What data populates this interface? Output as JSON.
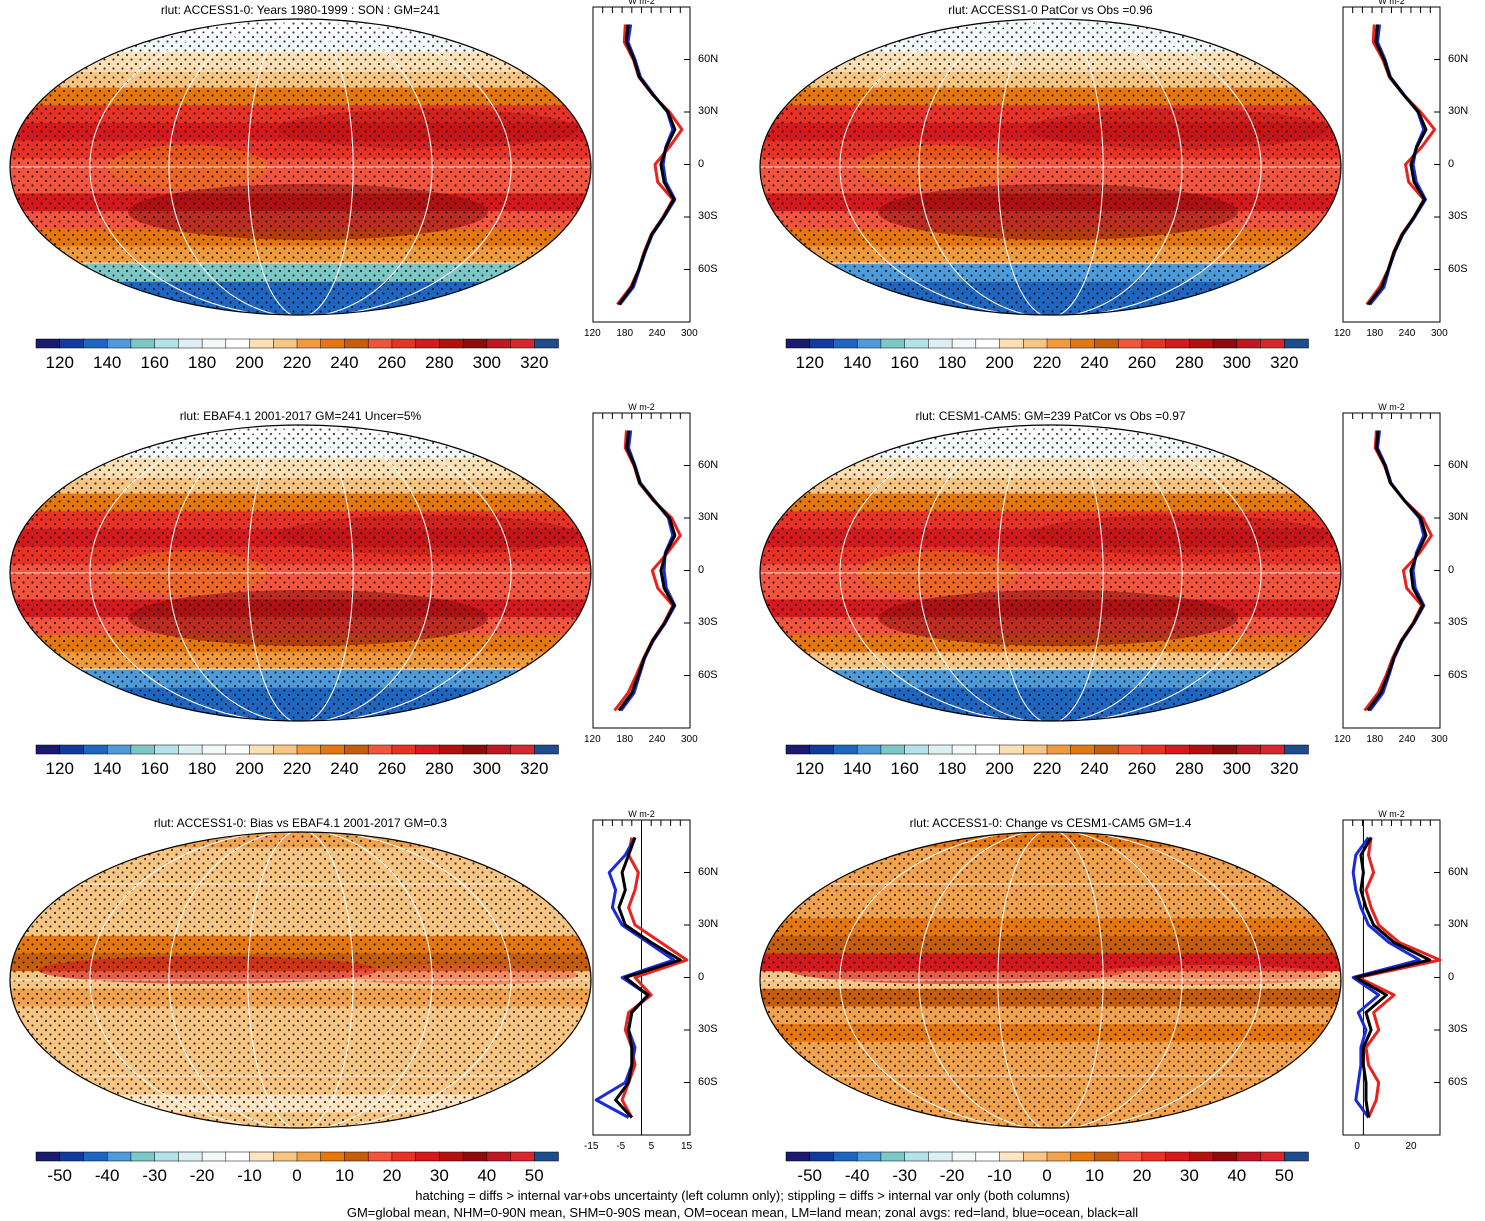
{
  "units": "W m-2",
  "zonal_lat_labels": [
    "60N",
    "30N",
    "0",
    "30S",
    "60S"
  ],
  "colors": {
    "land": "#e8231f",
    "ocean": "#1a2bd8",
    "all": "#000000"
  },
  "absolute_palette": [
    "#1a1a6e",
    "#123a9a",
    "#1f66c0",
    "#4f9bd9",
    "#7ec7c7",
    "#b3e3ea",
    "#dcf0f4",
    "#f4f8f9",
    "#ffffff",
    "#fbe0b5",
    "#f7c583",
    "#f09a3e",
    "#e57711",
    "#c55d0f",
    "#f2543d",
    "#e93226",
    "#d5191c",
    "#b5100f",
    "#8f0b0b",
    "#c01722",
    "#d8262e",
    "#1f4d8c"
  ],
  "diff_palette": [
    "#1a1a6e",
    "#123a9a",
    "#1f66c0",
    "#4f9bd9",
    "#7ec7c7",
    "#b3e3ea",
    "#dcf0f4",
    "#f4f8f9",
    "#ffffff",
    "#fde4c2",
    "#f7c583",
    "#f0a24f",
    "#e57711",
    "#c55d0f",
    "#f2543d",
    "#e93226",
    "#d5191c",
    "#b5100f",
    "#8f0b0b",
    "#c01722",
    "#d8262e",
    "#1f4d8c"
  ],
  "chart_data": [
    {
      "type": "heatmap",
      "title": "rlut: ACCESS1-0: Years 1980-1999 : SON : GM=241",
      "colorbar_ticks": [
        "120",
        "140",
        "160",
        "180",
        "200",
        "220",
        "240",
        "260",
        "280",
        "300",
        "320"
      ],
      "zonal": {
        "xlim": [
          120,
          300
        ],
        "xticks": [
          "120",
          "180",
          "240",
          "300"
        ],
        "zero_line": null,
        "lats": [
          80,
          70,
          60,
          50,
          40,
          30,
          20,
          10,
          0,
          -10,
          -20,
          -30,
          -40,
          -50,
          -60,
          -70,
          -80
        ],
        "land": [
          180,
          178,
          195,
          205,
          230,
          262,
          285,
          262,
          235,
          240,
          268,
          250,
          228,
          215,
          205,
          190,
          165
        ],
        "ocean": [
          190,
          185,
          198,
          208,
          232,
          258,
          268,
          255,
          250,
          255,
          272,
          252,
          230,
          217,
          206,
          195,
          170
        ],
        "all": [
          185,
          182,
          196,
          206,
          231,
          259,
          272,
          256,
          246,
          252,
          270,
          251,
          229,
          216,
          205,
          192,
          168
        ]
      }
    },
    {
      "type": "heatmap",
      "title": "rlut: ACCESS1-0 PatCor vs Obs =0.96",
      "colorbar_ticks": [
        "120",
        "140",
        "160",
        "180",
        "200",
        "220",
        "240",
        "260",
        "280",
        "300",
        "320"
      ],
      "zonal": {
        "xlim": [
          120,
          300
        ],
        "xticks": [
          "120",
          "180",
          "240",
          "300"
        ],
        "zero_line": null,
        "lats": [
          80,
          70,
          60,
          50,
          40,
          30,
          20,
          10,
          0,
          -10,
          -20,
          -30,
          -40,
          -50,
          -60,
          -70,
          -80
        ],
        "land": [
          178,
          176,
          194,
          206,
          232,
          264,
          290,
          266,
          236,
          242,
          270,
          252,
          229,
          214,
          204,
          188,
          164
        ],
        "ocean": [
          188,
          184,
          198,
          208,
          233,
          259,
          270,
          256,
          250,
          256,
          273,
          253,
          231,
          216,
          205,
          196,
          170
        ],
        "all": [
          184,
          181,
          196,
          207,
          232,
          260,
          274,
          257,
          246,
          252,
          271,
          252,
          230,
          215,
          204,
          192,
          167
        ]
      }
    },
    {
      "type": "heatmap",
      "title": "rlut: EBAF4.1 2001-2017 GM=241 Uncer=5%",
      "colorbar_ticks": [
        "120",
        "140",
        "160",
        "180",
        "200",
        "220",
        "240",
        "260",
        "280",
        "300",
        "320"
      ],
      "zonal": {
        "xlim": [
          120,
          300
        ],
        "xticks": [
          "120",
          "180",
          "240",
          "300"
        ],
        "zero_line": null,
        "lats": [
          80,
          70,
          60,
          50,
          40,
          30,
          20,
          10,
          0,
          -10,
          -20,
          -30,
          -40,
          -50,
          -60,
          -70,
          -80
        ],
        "land": [
          182,
          180,
          196,
          206,
          232,
          266,
          282,
          258,
          230,
          240,
          268,
          252,
          230,
          214,
          200,
          185,
          160
        ],
        "ocean": [
          190,
          186,
          198,
          208,
          234,
          260,
          268,
          254,
          252,
          256,
          272,
          254,
          232,
          216,
          206,
          196,
          172
        ],
        "all": [
          186,
          183,
          197,
          207,
          233,
          262,
          272,
          255,
          246,
          252,
          270,
          253,
          231,
          215,
          204,
          192,
          168
        ]
      }
    },
    {
      "type": "heatmap",
      "title": "rlut: CESM1-CAM5: GM=239 PatCor vs Obs =0.97",
      "colorbar_ticks": [
        "120",
        "140",
        "160",
        "180",
        "200",
        "220",
        "240",
        "260",
        "280",
        "300",
        "320"
      ],
      "zonal": {
        "xlim": [
          120,
          300
        ],
        "xticks": [
          "120",
          "180",
          "240",
          "300"
        ],
        "zero_line": null,
        "lats": [
          80,
          70,
          60,
          50,
          40,
          30,
          20,
          10,
          0,
          -10,
          -20,
          -30,
          -40,
          -50,
          -60,
          -70,
          -80
        ],
        "land": [
          182,
          180,
          197,
          208,
          234,
          268,
          284,
          262,
          232,
          238,
          266,
          250,
          228,
          212,
          200,
          185,
          160
        ],
        "ocean": [
          188,
          184,
          199,
          209,
          234,
          262,
          270,
          256,
          250,
          254,
          270,
          252,
          230,
          215,
          205,
          194,
          170
        ],
        "all": [
          185,
          182,
          198,
          208,
          234,
          264,
          274,
          258,
          246,
          250,
          268,
          251,
          229,
          214,
          203,
          190,
          166
        ]
      }
    },
    {
      "type": "heatmap",
      "title": "rlut: ACCESS1-0: Bias vs EBAF4.1 2001-2017  GM=0.3",
      "colorbar_ticks": [
        "-50",
        "-40",
        "-30",
        "-20",
        "-10",
        "0",
        "10",
        "20",
        "30",
        "40",
        "50"
      ],
      "zonal": {
        "xlim": [
          -15,
          15
        ],
        "xticks": [
          "-15",
          "-5",
          "5",
          "15"
        ],
        "zero_line": 0,
        "lats": [
          80,
          70,
          60,
          50,
          40,
          30,
          20,
          10,
          0,
          -10,
          -20,
          -30,
          -40,
          -50,
          -60,
          -70,
          -80
        ],
        "land": [
          -3,
          -4,
          -1,
          -2,
          -4,
          -2,
          6,
          14,
          -2,
          3,
          -4,
          -5,
          -3,
          -2,
          -4,
          -6,
          -3
        ],
        "ocean": [
          -2,
          -5,
          -10,
          -8,
          -9,
          -6,
          2,
          10,
          -6,
          2,
          -3,
          -4,
          -2,
          -3,
          -5,
          -14,
          -4
        ],
        "all": [
          -2,
          -4,
          -6,
          -5,
          -7,
          -5,
          3,
          12,
          -5,
          2,
          -3,
          -4,
          -3,
          -3,
          -4,
          -8,
          -3
        ]
      }
    },
    {
      "type": "heatmap",
      "title": "rlut: ACCESS1-0: Change vs CESM1-CAM5 GM=1.4",
      "colorbar_ticks": [
        "-50",
        "-40",
        "-30",
        "-20",
        "-10",
        "0",
        "10",
        "20",
        "30",
        "40",
        "50"
      ],
      "zonal": {
        "xlim": [
          -8,
          30
        ],
        "xticks": [
          "0",
          "20"
        ],
        "zero_line": 0,
        "lats": [
          80,
          70,
          60,
          50,
          40,
          30,
          20,
          10,
          0,
          -10,
          -20,
          -30,
          -40,
          -50,
          -60,
          -70,
          -80
        ],
        "land": [
          3,
          2,
          4,
          1,
          3,
          6,
          14,
          30,
          -2,
          12,
          4,
          6,
          1,
          2,
          6,
          5,
          2
        ],
        "ocean": [
          2,
          -3,
          -4,
          -3,
          -1,
          2,
          10,
          22,
          -4,
          6,
          -2,
          1,
          -1,
          -1,
          -2,
          -3,
          2
        ],
        "all": [
          3,
          -1,
          0,
          -1,
          1,
          4,
          12,
          26,
          -3,
          9,
          1,
          3,
          0,
          0,
          1,
          1,
          2
        ]
      }
    }
  ],
  "footnote": {
    "line1": "hatching = diffs > internal var+obs uncertainty (left column only); stippling = diffs > internal var only (both columns)",
    "line2": "GM=global mean, NHM=0-90N mean, SHM=0-90S mean, OM=ocean mean, LM=land mean; zonal avgs: red=land, blue=ocean, black=all"
  }
}
